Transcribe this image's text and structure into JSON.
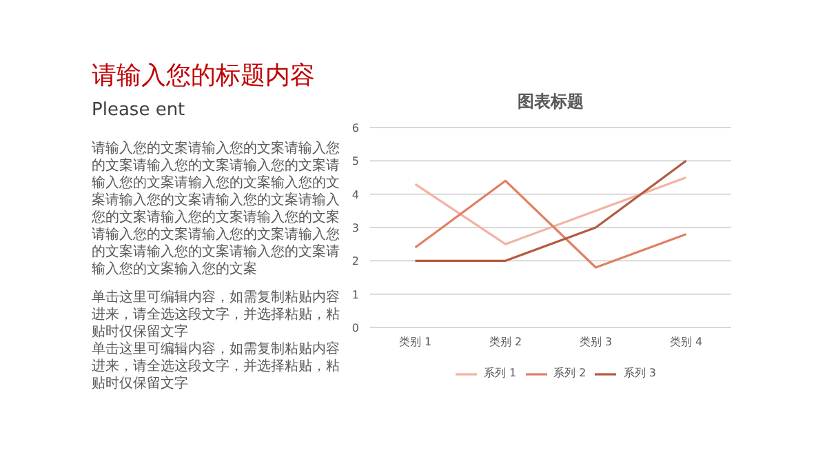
{
  "chart_data": {
    "type": "line",
    "title": "图表标题",
    "categories": [
      "类别 1",
      "类别 2",
      "类别 3",
      "类别 4"
    ],
    "series": [
      {
        "name": "系列 1",
        "color": "#f2b3a3",
        "values": [
          4.3,
          2.5,
          3.5,
          4.5
        ]
      },
      {
        "name": "系列 2",
        "color": "#e07f63",
        "values": [
          2.4,
          4.4,
          1.8,
          2.8
        ]
      },
      {
        "name": "系列 3",
        "color": "#b55a3f",
        "values": [
          2,
          2,
          3,
          5
        ]
      }
    ],
    "ylim": [
      0,
      6
    ],
    "yticks": [
      0,
      1,
      2,
      3,
      4,
      5,
      6
    ],
    "grid": "y",
    "legend": "bottom",
    "marker": "none",
    "line_style": "solid",
    "annotations": [
      "请输入您的标题内容",
      "Please ent",
      "请输入您的文案请输入您的文案请输入您的文案请输入您的文案请输入您的文案请输入您的文案请输入您的文案输入您的文案请输入您的文案请输入您的文案请输入",
      "您的文案请输入您的文案请输入您的文案请输入您的文案请输入您的文案请输入您的文案请输入您的文案请输入您的文案请输入您的文案输入您的文案",
      "单击这里可编辑内容，如需复制粘贴内容进来，请全选这段文字，并选择粘贴，粘贴时仅保留文字",
      "单击这里可编辑内容，如需复制粘贴内容进来，请全选这段文字，并选择粘贴，粘贴时仅保留文字"
    ]
  }
}
